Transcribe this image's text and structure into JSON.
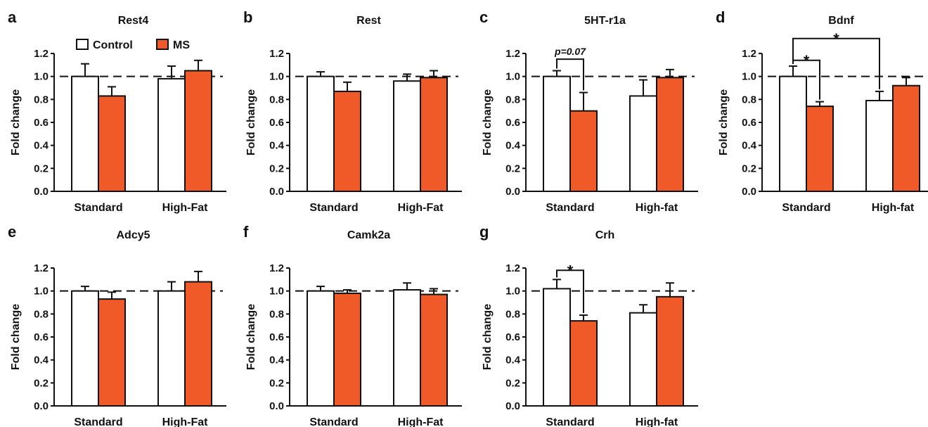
{
  "colors": {
    "control": "#ffffff",
    "ms": "#f05a28",
    "stroke": "#111111"
  },
  "legend": {
    "items": [
      {
        "name": "Control"
      },
      {
        "name": "MS"
      }
    ]
  },
  "chart_data": [
    {
      "letter": "a",
      "type": "bar",
      "title": "Rest4",
      "ylabel": "Fold change",
      "ylim": [
        0,
        1.2
      ],
      "yticks": [
        "0.0",
        "0.2",
        "0.4",
        "0.6",
        "0.8",
        "1.0",
        "1.2"
      ],
      "reference_line": 1.0,
      "categories": [
        "Standard",
        "High-Fat"
      ],
      "series": [
        {
          "name": "Control",
          "values": [
            1.0,
            0.98
          ],
          "errors": [
            0.11,
            0.11
          ]
        },
        {
          "name": "MS",
          "values": [
            0.83,
            1.05
          ],
          "errors": [
            0.08,
            0.09
          ]
        }
      ],
      "annotations": []
    },
    {
      "letter": "b",
      "type": "bar",
      "title": "Rest",
      "ylabel": "Fold change",
      "ylim": [
        0,
        1.2
      ],
      "yticks": [
        "0.0",
        "0.2",
        "0.4",
        "0.6",
        "0.8",
        "1.0",
        "1.2"
      ],
      "reference_line": 1.0,
      "categories": [
        "Standard",
        "High-Fat"
      ],
      "series": [
        {
          "name": "Control",
          "values": [
            1.0,
            0.96
          ],
          "errors": [
            0.04,
            0.06
          ]
        },
        {
          "name": "MS",
          "values": [
            0.87,
            0.99
          ],
          "errors": [
            0.08,
            0.06
          ]
        }
      ],
      "annotations": []
    },
    {
      "letter": "c",
      "type": "bar",
      "title": "5HT-r1a",
      "ylabel": "Fold change",
      "ylim": [
        0,
        1.2
      ],
      "yticks": [
        "0.0",
        "0.2",
        "0.4",
        "0.6",
        "0.8",
        "1.0",
        "1.2"
      ],
      "reference_line": 1.0,
      "categories": [
        "Standard",
        "High-fat"
      ],
      "series": [
        {
          "name": "Control",
          "values": [
            1.0,
            0.83
          ],
          "errors": [
            0.05,
            0.14
          ]
        },
        {
          "name": "MS",
          "values": [
            0.7,
            0.99
          ],
          "errors": [
            0.16,
            0.07
          ]
        }
      ],
      "annotations": [
        {
          "text": "p=0.07",
          "style": "p",
          "from_bar": [
            0,
            0
          ],
          "to_bar": [
            0,
            1
          ],
          "level": 1.15
        }
      ]
    },
    {
      "letter": "d",
      "type": "bar",
      "title": "Bdnf",
      "ylabel": "Fold change",
      "ylim": [
        0,
        1.2
      ],
      "yticks": [
        "0.0",
        "0.2",
        "0.4",
        "0.6",
        "0.8",
        "1.0",
        "1.2"
      ],
      "reference_line": 1.0,
      "categories": [
        "Standard",
        "High-fat"
      ],
      "series": [
        {
          "name": "Control",
          "values": [
            1.0,
            0.79
          ],
          "errors": [
            0.09,
            0.08
          ]
        },
        {
          "name": "MS",
          "values": [
            0.74,
            0.92
          ],
          "errors": [
            0.04,
            0.07
          ]
        }
      ],
      "annotations": [
        {
          "text": "*",
          "style": "star",
          "from_bar": [
            0,
            0
          ],
          "to_bar": [
            0,
            1
          ],
          "level": 1.14
        },
        {
          "text": "*",
          "style": "star",
          "from_bar": [
            0,
            0
          ],
          "to_bar": [
            1,
            0
          ],
          "level": 1.33
        }
      ]
    },
    {
      "letter": "e",
      "type": "bar",
      "title": "Adcy5",
      "ylabel": "Fold change",
      "ylim": [
        0,
        1.2
      ],
      "yticks": [
        "0.0",
        "0.2",
        "0.4",
        "0.6",
        "0.8",
        "1.0",
        "1.2"
      ],
      "reference_line": 1.0,
      "categories": [
        "Standard",
        "High-Fat"
      ],
      "series": [
        {
          "name": "Control",
          "values": [
            1.0,
            1.0
          ],
          "errors": [
            0.04,
            0.08
          ]
        },
        {
          "name": "MS",
          "values": [
            0.93,
            1.08
          ],
          "errors": [
            0.06,
            0.09
          ]
        }
      ],
      "annotations": []
    },
    {
      "letter": "f",
      "type": "bar",
      "title": "Camk2a",
      "ylabel": "Fold change",
      "ylim": [
        0,
        1.2
      ],
      "yticks": [
        "0.0",
        "0.2",
        "0.4",
        "0.6",
        "0.8",
        "1.0",
        "1.2"
      ],
      "reference_line": 1.0,
      "categories": [
        "Standard",
        "High-Fat"
      ],
      "series": [
        {
          "name": "Control",
          "values": [
            1.0,
            1.01
          ],
          "errors": [
            0.04,
            0.06
          ]
        },
        {
          "name": "MS",
          "values": [
            0.98,
            0.97
          ],
          "errors": [
            0.03,
            0.05
          ]
        }
      ],
      "annotations": []
    },
    {
      "letter": "g",
      "type": "bar",
      "title": "Crh",
      "ylabel": "Fold change",
      "ylim": [
        0,
        1.2
      ],
      "yticks": [
        "0.0",
        "0.2",
        "0.4",
        "0.6",
        "0.8",
        "1.0",
        "1.2"
      ],
      "reference_line": 1.0,
      "categories": [
        "Standard",
        "High-fat"
      ],
      "series": [
        {
          "name": "Control",
          "values": [
            1.02,
            0.81
          ],
          "errors": [
            0.08,
            0.07
          ]
        },
        {
          "name": "MS",
          "values": [
            0.74,
            0.95
          ],
          "errors": [
            0.05,
            0.12
          ]
        }
      ],
      "annotations": [
        {
          "text": "*",
          "style": "star",
          "from_bar": [
            0,
            0
          ],
          "to_bar": [
            0,
            1
          ],
          "level": 1.18
        }
      ]
    }
  ]
}
